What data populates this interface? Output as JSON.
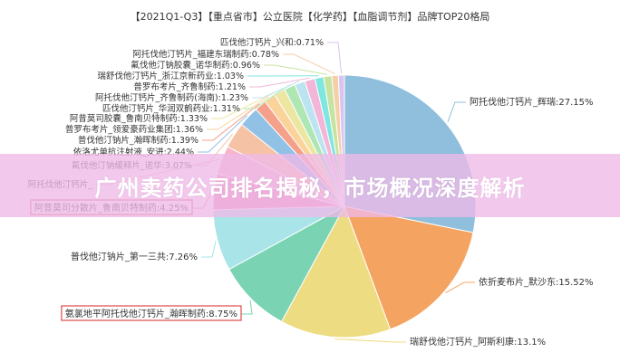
{
  "chart_data": {
    "type": "pie",
    "title": "【2021Q1-Q3】【重点省市】公立医院【化学药】【血脂调节剂】品牌TOP20格局",
    "unit": "%",
    "slices": [
      {
        "label": "阿托伐他汀钙片_辉瑞",
        "value": 27.15,
        "color": "#8fbfdc"
      },
      {
        "label": "依折麦布片_默沙东",
        "value": 15.52,
        "color": "#f4a460"
      },
      {
        "label": "瑞舒伐他汀钙片_阿斯利康",
        "value": 13.1,
        "color": "#eedc82"
      },
      {
        "label": "氨氯地平阿托伐他汀钙片_瀚晖制药",
        "value": 8.75,
        "color": "#7ad3b3"
      },
      {
        "label": "普伐他汀钠片_第一三共",
        "value": 7.26,
        "color": "#a8e4e8"
      },
      {
        "label": "阿昔莫司分散片_鲁南贝特制药",
        "value": 4.25,
        "color": "#f08bb0"
      },
      {
        "label": "阿托伐他汀钙片_",
        "value": 3.4,
        "color": "#f7b6c8"
      },
      {
        "label": "氟伐他汀钠缓释片_诺华",
        "value": 3.07,
        "color": "#f6c2a6"
      },
      {
        "label": "依洛尤单抗注射液_安进",
        "value": 2.44,
        "color": "#92c1e6"
      },
      {
        "label": "普伐他汀钠片_瀚晖制药",
        "value": 1.39,
        "color": "#f5a08a"
      },
      {
        "label": "普罗布考片_领爱豪药业集团",
        "value": 1.36,
        "color": "#fad39b"
      },
      {
        "label": "阿昔莫司胶囊_鲁南贝特制药",
        "value": 1.33,
        "color": "#ece6a2"
      },
      {
        "label": "匹伐他汀钙片_华润双鹤药业",
        "value": 1.31,
        "color": "#aee6b4"
      },
      {
        "label": "阿托伐他汀钙片_齐鲁制药(海南)",
        "value": 1.23,
        "color": "#bce3f0"
      },
      {
        "label": "普罗布考片_齐鲁制药",
        "value": 1.21,
        "color": "#f3b6d9"
      },
      {
        "label": "瑞舒伐他汀钙片_浙江京新药业",
        "value": 1.03,
        "color": "#7fe7e0"
      },
      {
        "label": "氟伐他汀钠胶囊_诺华制药",
        "value": 0.96,
        "color": "#c7e3a0"
      },
      {
        "label": "阿托伐他汀钙片_福建东瑞制药",
        "value": 0.78,
        "color": "#f5cfa8"
      },
      {
        "label": "匹伐他汀钙片_兴和",
        "value": 0.71,
        "color": "#d9c3ef"
      }
    ],
    "highlighted": [
      "氨氯地平阿托伐他汀钙片_瀚晖制药",
      "阿昔莫司分散片_鲁南贝特制药"
    ],
    "legend": "none",
    "label_texts": [
      "阿托伐他汀钙片_辉瑞:27.15%",
      "依折麦布片_默沙东:15.52%",
      "瑞舒伐他汀钙片_阿斯利康:13.1%",
      "氨氯地平阿托伐他汀钙片_瀚晖制药:8.75%",
      "普伐他汀钠片_第一三共:7.26%",
      "阿昔莫司分散片_鲁南贝特制药:4.25%",
      "阿托伐他汀钙片_",
      "氟伐他汀钠缓释片_诺华:3.07%",
      "依洛尤单抗注射液_安进:2.44%",
      "普伐他汀钠片_瀚晖制药:1.39%",
      "普罗布考片_领爱豪药业集团:1.36%",
      "阿昔莫司胶囊_鲁南贝特制药:1.33%",
      "匹伐他汀钙片_华润双鹤药业:1.31%",
      "阿托伐他汀钙片_齐鲁制药(海南):1.23%",
      "普罗布考片_齐鲁制药:1.21%",
      "瑞舒伐他汀钙片_浙江京新药业:1.03%",
      "氟伐他汀钠胶囊_诺华制药:0.96%",
      "阿托伐他汀钙片_福建东瑞制药:0.78%",
      "匹伐他汀钙片_兴和:0.71%"
    ]
  },
  "overlay": {
    "text": "广州卖药公司排名揭秘，市场概况深度解析",
    "color": "#eebae8"
  }
}
